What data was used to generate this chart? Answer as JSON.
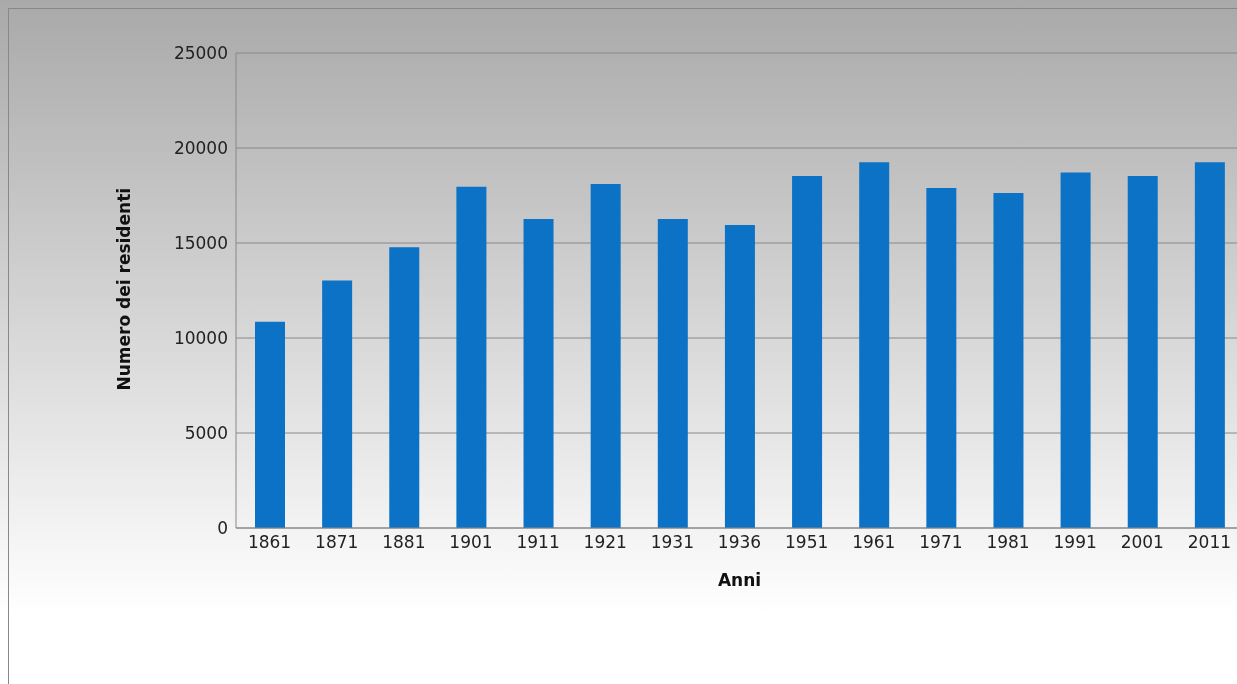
{
  "chart_data": {
    "type": "bar",
    "xlabel": "Anni",
    "ylabel": "Numero dei residenti",
    "categories": [
      "1861",
      "1871",
      "1881",
      "1901",
      "1911",
      "1921",
      "1931",
      "1936",
      "1951",
      "1961",
      "1971",
      "1981",
      "1991",
      "2001",
      "2011"
    ],
    "values": [
      10860,
      13020,
      14770,
      17960,
      16260,
      18110,
      16260,
      15950,
      18530,
      19250,
      17900,
      17630,
      18710,
      18530,
      19250
    ],
    "color": "#0b72c6",
    "ylim": [
      0,
      25000
    ],
    "yticks": [
      0,
      5000,
      10000,
      15000,
      20000,
      25000
    ],
    "grid": "y"
  }
}
